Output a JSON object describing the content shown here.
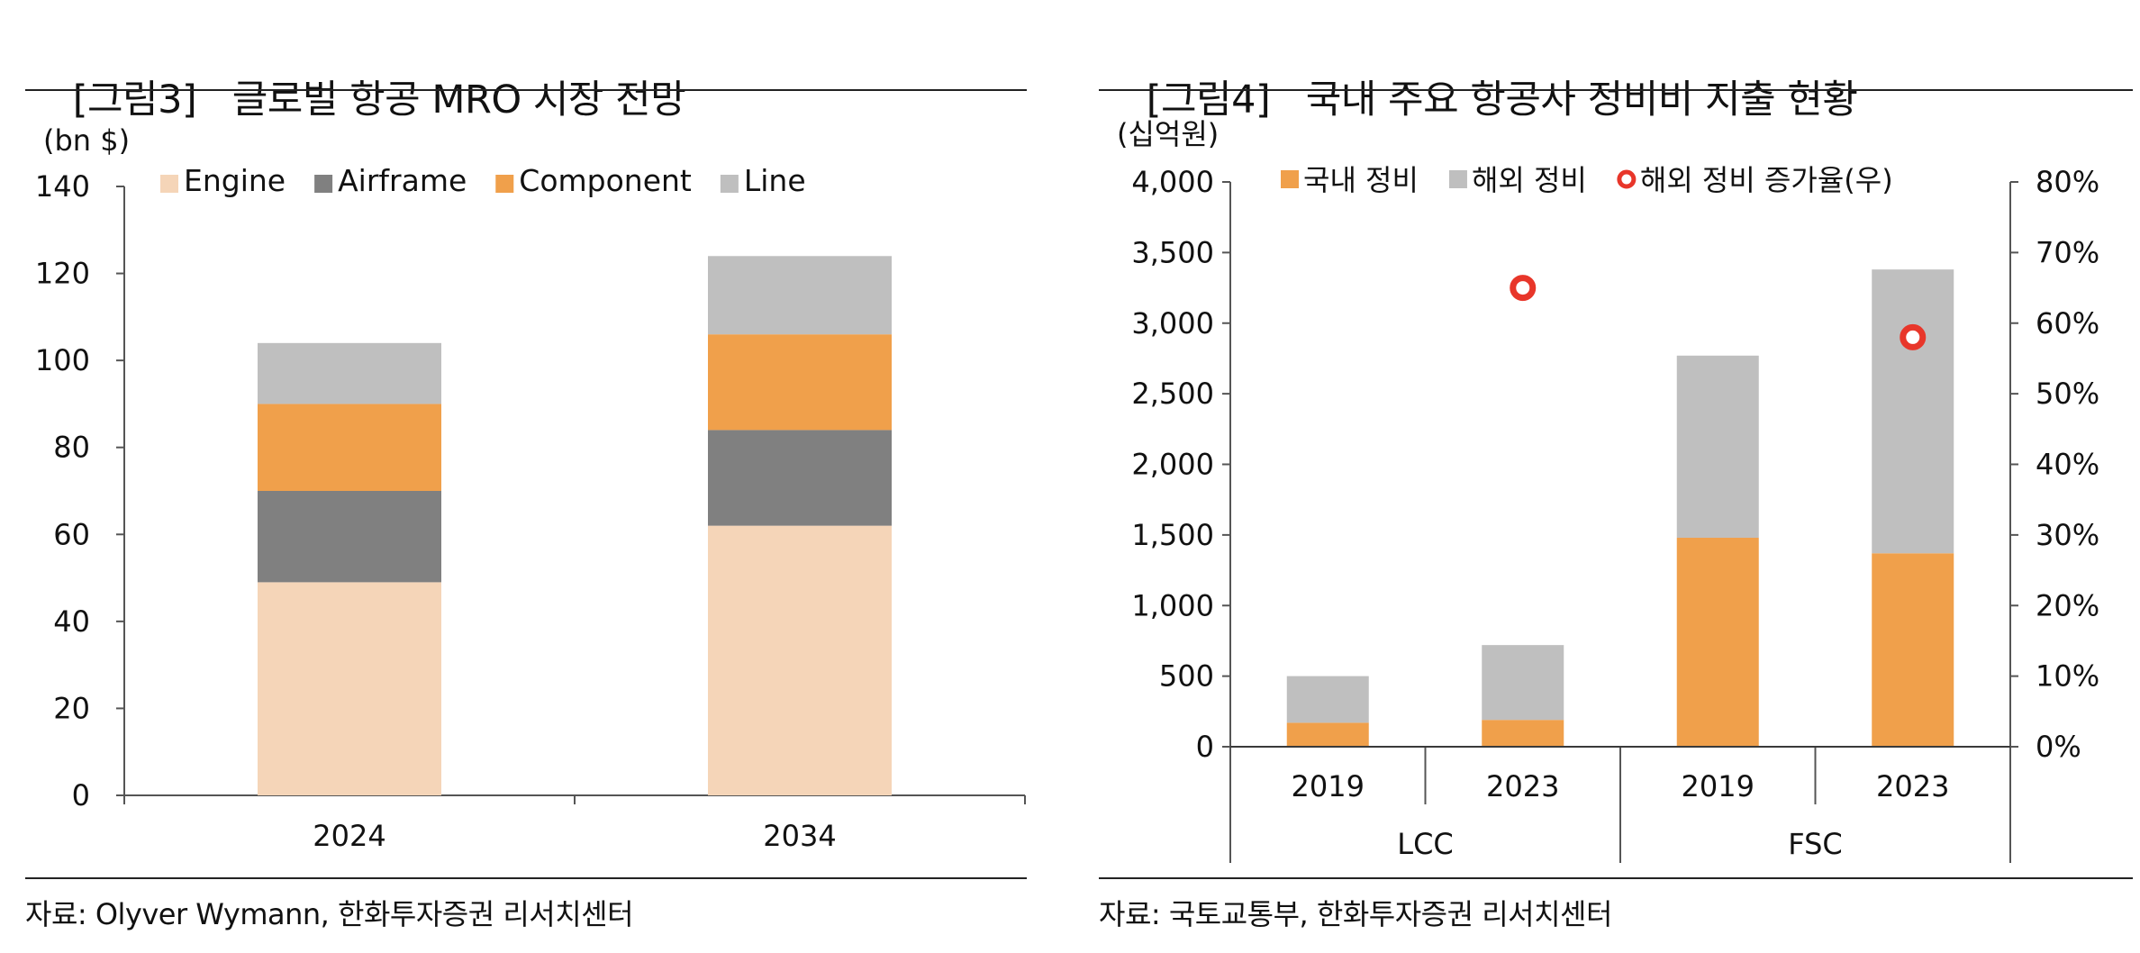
{
  "colors": {
    "engine": "#f5d5b8",
    "airframe": "#808080",
    "component": "#f0a04b",
    "line": "#bfbfbf",
    "domestic": "#f0a04b",
    "overseas": "#bfbfbf",
    "growth_marker": "#e8362a",
    "axis": "#555555"
  },
  "chart_data": [
    {
      "id": "fig3",
      "type": "bar",
      "stacked": true,
      "figure_label": "[그림3]",
      "title": "글로벌 항공 MRO 시장 전망",
      "unit_label": "(bn $)",
      "categories": [
        "2024",
        "2034"
      ],
      "series": [
        {
          "name": "Engine",
          "color_key": "engine",
          "values": [
            49,
            62
          ]
        },
        {
          "name": "Airframe",
          "color_key": "airframe",
          "values": [
            21,
            22
          ]
        },
        {
          "name": "Component",
          "color_key": "component",
          "values": [
            20,
            22
          ]
        },
        {
          "name": "Line",
          "color_key": "line",
          "values": [
            14,
            18
          ]
        }
      ],
      "ylim": [
        0,
        140
      ],
      "yticks": [
        "0",
        "20",
        "40",
        "60",
        "80",
        "100",
        "120",
        "140"
      ],
      "legend_position": "top",
      "source": "자료: Olyver Wymann, 한화투자증권 리서치센터"
    },
    {
      "id": "fig4",
      "type": "bar",
      "stacked": true,
      "figure_label": "[그림4]",
      "title": "국내 주요 항공사 정비비 지출 현황",
      "unit_label": "(십억원)",
      "categories": [
        "2019",
        "2023",
        "2019",
        "2023"
      ],
      "groups": [
        {
          "name": "LCC",
          "span": [
            0,
            1
          ]
        },
        {
          "name": "FSC",
          "span": [
            2,
            3
          ]
        }
      ],
      "series": [
        {
          "name": "국내 정비",
          "color_key": "domestic",
          "values": [
            170,
            190,
            1480,
            1370
          ]
        },
        {
          "name": "해외 정비",
          "color_key": "overseas",
          "values": [
            330,
            530,
            1290,
            2010
          ]
        }
      ],
      "secondary_series": {
        "name": "해외 정비 증가율(우)",
        "type": "scatter",
        "color_key": "growth_marker",
        "values": [
          null,
          65,
          null,
          58
        ]
      },
      "ylim": [
        0,
        4000
      ],
      "yticks": [
        "0",
        "500",
        "1,000",
        "1,500",
        "2,000",
        "2,500",
        "3,000",
        "3,500",
        "4,000"
      ],
      "y2lim": [
        0,
        80
      ],
      "y2ticks": [
        "0%",
        "10%",
        "20%",
        "30%",
        "40%",
        "50%",
        "60%",
        "70%",
        "80%"
      ],
      "legend_position": "top",
      "source": "자료: 국토교통부, 한화투자증권 리서치센터"
    }
  ]
}
